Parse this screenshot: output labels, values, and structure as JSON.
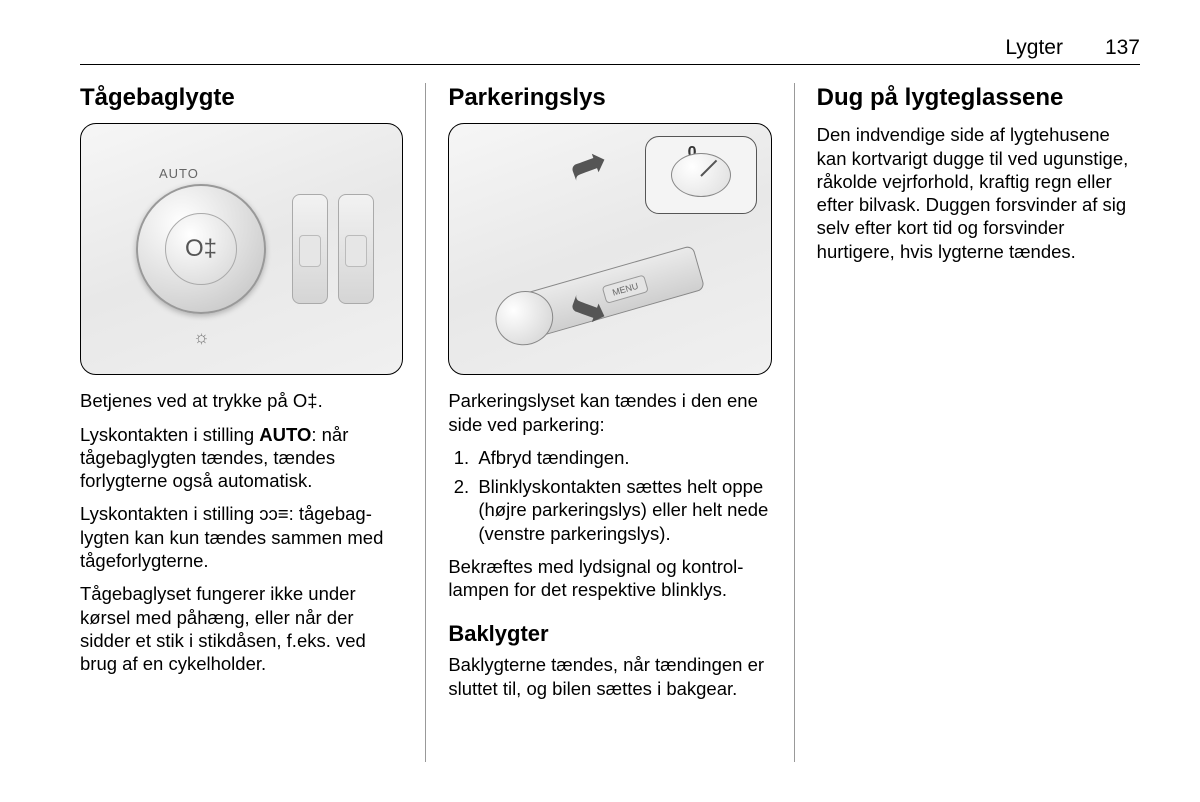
{
  "header": {
    "section": "Lygter",
    "page_number": "137"
  },
  "col1": {
    "title": "Tågebaglygte",
    "p1_pre": "Betjenes ved at trykke på ",
    "p1_symbol": "O‡",
    "p1_post": ".",
    "p2_pre": "Lyskontakten i stilling ",
    "p2_bold": "AUTO",
    "p2_post": ": når tågebaglygten tændes, tændes forlygterne også automatisk.",
    "p3_pre": "Lyskontakten i stilling ",
    "p3_symbol": "ᴐᴐ≡",
    "p3_post": ": tågebag­lygten kan kun tændes sammen med tågeforlygterne.",
    "p4": "Tågebaglyset fungerer ikke under kørsel med påhæng, eller når der sidder et stik i stikdåsen, f.eks. ved brug af en cykelholder.",
    "fig_labels": {
      "auto": "AUTO",
      "menu": "MENU",
      "fog_icon": "O‡"
    }
  },
  "col2": {
    "title": "Parkeringslys",
    "p1": "Parkeringslyset kan tændes i den ene side ved parkering:",
    "li1": "Afbryd tændingen.",
    "li2": "Blinklyskontakten sættes helt oppe (højre parkeringslys) eller helt nede (venstre parkeringslys).",
    "p2": "Bekræftes med lydsignal og kontrol­lampen for det respektive blinklys.",
    "subheading": "Baklygter",
    "p3": "Baklygterne tændes, når tændingen er sluttet til, og bilen sættes i bakgear.",
    "inset_label": "0"
  },
  "col3": {
    "title": "Dug på lygteglassene",
    "p1": "Den indvendige side af lygtehusene kan kortvarigt dugge til ved ugun­stige, råkolde vejrforhold, kraftig regn eller efter bilvask. Duggen forsvinder af sig selv efter kort tid og forsvinder hurtigere, hvis lygterne tændes."
  }
}
